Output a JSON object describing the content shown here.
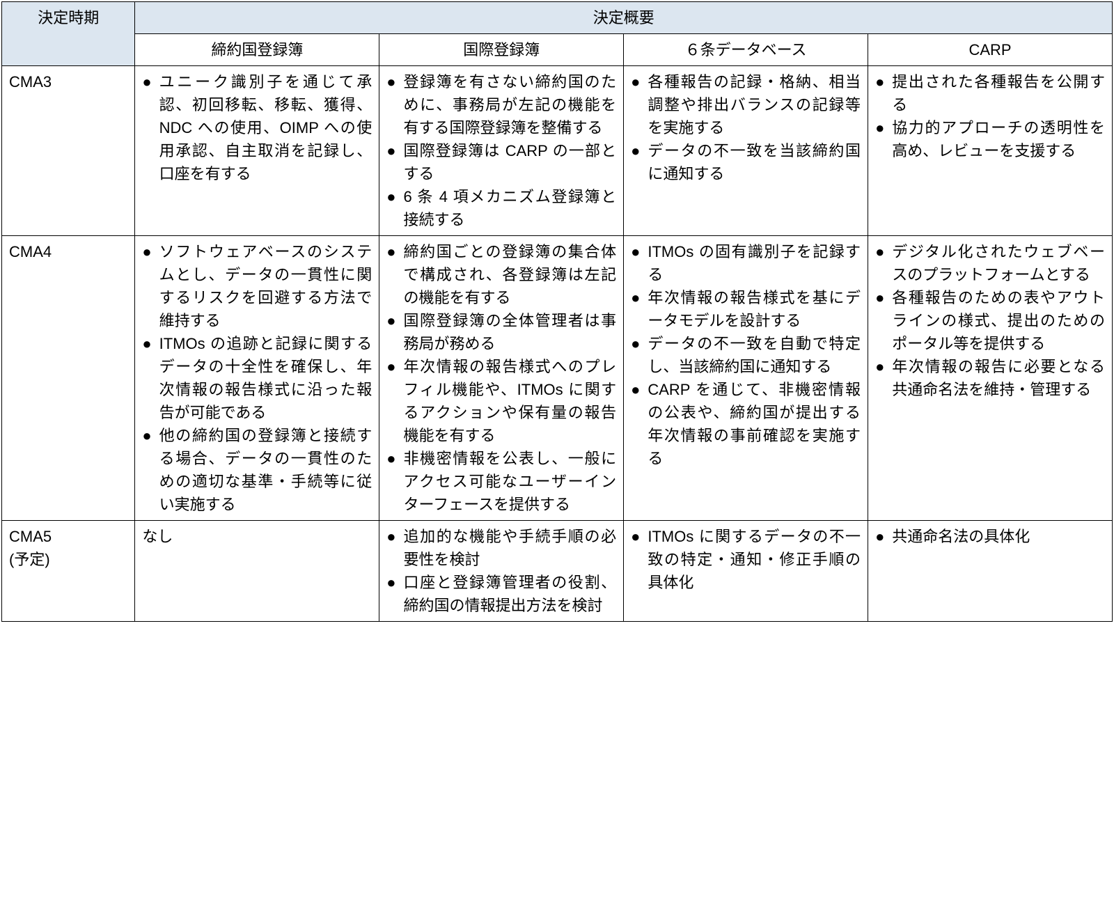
{
  "colors": {
    "header_bg": "#dce6f0",
    "border": "#000000",
    "body_bg": "#ffffff"
  },
  "header": {
    "col0": "決定時期",
    "colspan": "決定概要",
    "sub1": "締約国登録簿",
    "sub2": "国際登録簿",
    "sub3": "６条データベース",
    "sub4": "CARP"
  },
  "rows": [
    {
      "label": "CMA3",
      "c1": [
        "ユニーク識別子を通じて承認、初回移転、移転、獲得、NDC への使用、OIMP への使用承認、自主取消を記録し、口座を有する"
      ],
      "c2": [
        "登録簿を有さない締約国のために、事務局が左記の機能を有する国際登録簿を整備する",
        "国際登録簿は CARP の一部とする",
        "6 条 4 項メカニズム登録簿と接続する"
      ],
      "c3": [
        "各種報告の記録・格納、相当調整や排出バランスの記録等を実施する",
        "データの不一致を当該締約国に通知する"
      ],
      "c4": [
        "提出された各種報告を公開する",
        "協力的アプローチの透明性を高め、レビューを支援する"
      ]
    },
    {
      "label": "CMA4",
      "c1": [
        "ソフトウェアベースのシステムとし、データの一貫性に関するリスクを回避する方法で維持する",
        "ITMOs の追跡と記録に関するデータの十全性を確保し、年次情報の報告様式に沿った報告が可能である",
        "他の締約国の登録簿と接続する場合、データの一貫性のための適切な基準・手続等に従い実施する"
      ],
      "c2": [
        "締約国ごとの登録簿の集合体で構成され、各登録簿は左記の機能を有する",
        "国際登録簿の全体管理者は事務局が務める",
        "年次情報の報告様式へのプレフィル機能や、ITMOs に関するアクションや保有量の報告機能を有する",
        "非機密情報を公表し、一般にアクセス可能なユーザーインターフェースを提供する"
      ],
      "c3": [
        "ITMOs の固有識別子を記録する",
        "年次情報の報告様式を基にデータモデルを設計する",
        "データの不一致を自動で特定し、当該締約国に通知する",
        "CARP を通じて、非機密情報の公表や、締約国が提出する年次情報の事前確認を実施する"
      ],
      "c4": [
        "デジタル化されたウェブベースのプラットフォームとする",
        "各種報告のための表やアウトラインの様式、提出のためのポータル等を提供する",
        "年次情報の報告に必要となる共通命名法を維持・管理する"
      ]
    },
    {
      "label": "CMA5\n(予定)",
      "c1_plain": "なし",
      "c2": [
        "追加的な機能や手続手順の必要性を検討",
        "口座と登録簿管理者の役割、締約国の情報提出方法を検討"
      ],
      "c3": [
        "ITMOs に関するデータの不一致の特定・通知・修正手順の具体化"
      ],
      "c4": [
        "共通命名法の具体化"
      ]
    }
  ]
}
